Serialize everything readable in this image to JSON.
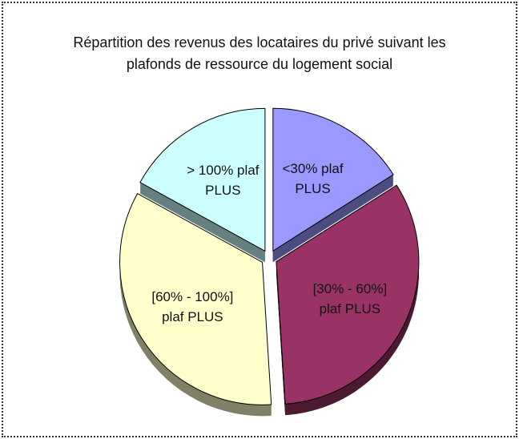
{
  "chart_data": {
    "type": "pie",
    "title": "Répartition des revenus des locataires du privé suivant les plafonds de ressource du logement social",
    "categories": [
      "<30% plaf PLUS",
      "[30% - 60%] plaf PLUS",
      "[60% - 100%] plaf PLUS",
      "> 100% plaf PLUS"
    ],
    "values": [
      16,
      33,
      34,
      17
    ],
    "colors": [
      "#9999ff",
      "#993366",
      "#ffffcc",
      "#ccffff"
    ]
  }
}
